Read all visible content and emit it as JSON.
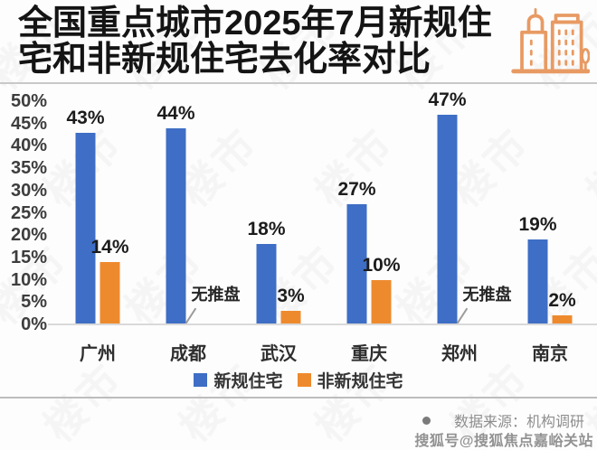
{
  "header": {
    "title_line1": "全国重点城市2025年7月新规住",
    "title_line2": "宅和非新规住宅去化率对比"
  },
  "chart_data": {
    "type": "bar",
    "title": "全国重点城市2025年7月新规住宅和非新规住宅去化率对比",
    "categories": [
      "广州",
      "成都",
      "武汉",
      "重庆",
      "郑州",
      "南京"
    ],
    "series": [
      {
        "name": "新规住宅",
        "color": "#3E6EC5",
        "values": [
          43,
          44,
          18,
          27,
          47,
          19
        ]
      },
      {
        "name": "非新规住宅",
        "color": "#EE8A2E",
        "values": [
          14,
          null,
          3,
          10,
          null,
          2
        ]
      }
    ],
    "null_value_label": "无推盘",
    "value_suffix": "%",
    "xlabel": "",
    "ylabel": "",
    "ylim": [
      0,
      50
    ],
    "ytick_step": 5,
    "ytick_suffix": "%",
    "grid": false,
    "legend_position": "bottom"
  },
  "footer": {
    "source_text": "数据来源：机构调研",
    "watermark_text": "搜狐号@搜狐焦点嘉峪关站"
  },
  "decor": {
    "background_watermark_glyph": "楼市"
  },
  "colors": {
    "bar_blue": "#3E6EC5",
    "bar_orange": "#EE8A2E",
    "icon_orange": "#E89A63",
    "title_text": "#141414",
    "axis_text": "#3d3d3d",
    "muted_text": "#8e8e8e"
  }
}
